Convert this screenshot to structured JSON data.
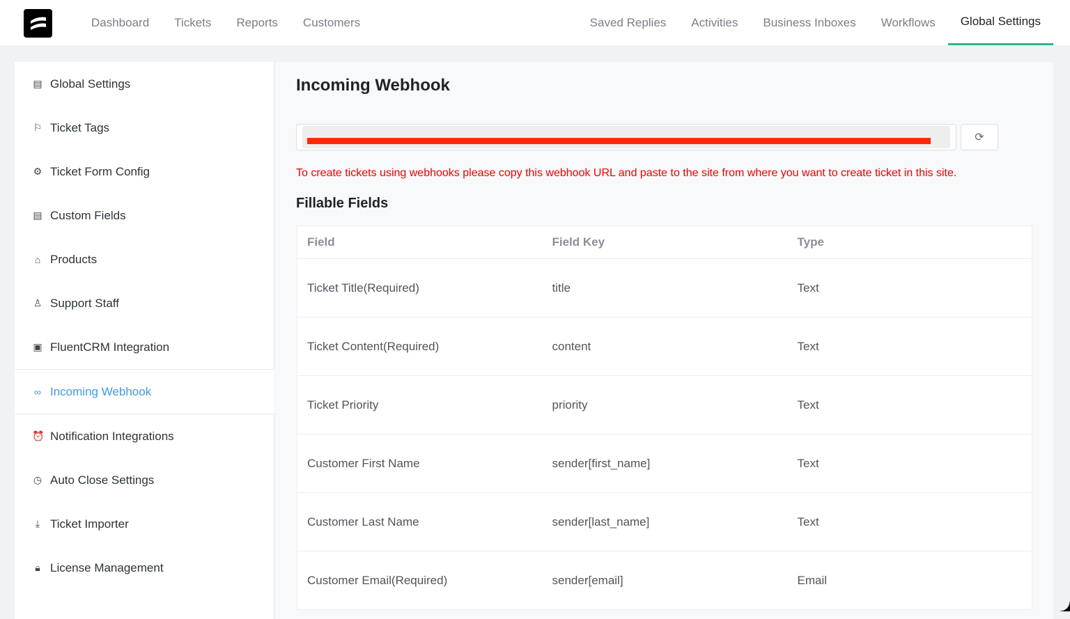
{
  "nav": {
    "left": [
      "Dashboard",
      "Tickets",
      "Reports",
      "Customers"
    ],
    "right": [
      "Saved Replies",
      "Activities",
      "Business Inboxes",
      "Workflows",
      "Global Settings"
    ],
    "active": "Global Settings"
  },
  "sidebar": {
    "items": [
      {
        "label": "Global Settings",
        "icon": "document-icon"
      },
      {
        "label": "Ticket Tags",
        "icon": "bookmark-icon"
      },
      {
        "label": "Ticket Form Config",
        "icon": "gear-icon"
      },
      {
        "label": "Custom Fields",
        "icon": "list-document-icon"
      },
      {
        "label": "Products",
        "icon": "bag-icon"
      },
      {
        "label": "Support Staff",
        "icon": "user-icon"
      },
      {
        "label": "FluentCRM Integration",
        "icon": "chip-icon"
      },
      {
        "label": "Incoming Webhook",
        "icon": "link-icon",
        "active": true
      },
      {
        "label": "Notification Integrations",
        "icon": "alarm-icon"
      },
      {
        "label": "Auto Close Settings",
        "icon": "timer-icon"
      },
      {
        "label": "Ticket Importer",
        "icon": "download-icon"
      },
      {
        "label": "License Management",
        "icon": "lock-icon"
      }
    ]
  },
  "main": {
    "title": "Incoming Webhook",
    "help": "To create tickets using webhooks please copy this webhook URL and paste to the site from where you want to create ticket in this site.",
    "fields_title": "Fillable Fields",
    "columns": [
      "Field",
      "Field Key",
      "Type"
    ],
    "rows": [
      [
        "Ticket Title(Required)",
        "title",
        "Text"
      ],
      [
        "Ticket Content(Required)",
        "content",
        "Text"
      ],
      [
        "Ticket Priority",
        "priority",
        "Text"
      ],
      [
        "Customer First Name",
        "sender[first_name]",
        "Text"
      ],
      [
        "Customer Last Name",
        "sender[last_name]",
        "Text"
      ],
      [
        "Customer Email(Required)",
        "sender[email]",
        "Email"
      ]
    ]
  },
  "colors": {
    "accent": "#2ab58a",
    "active_link": "#3d9bf0",
    "warning": "#f20000",
    "redaction": "#ff2a00"
  }
}
